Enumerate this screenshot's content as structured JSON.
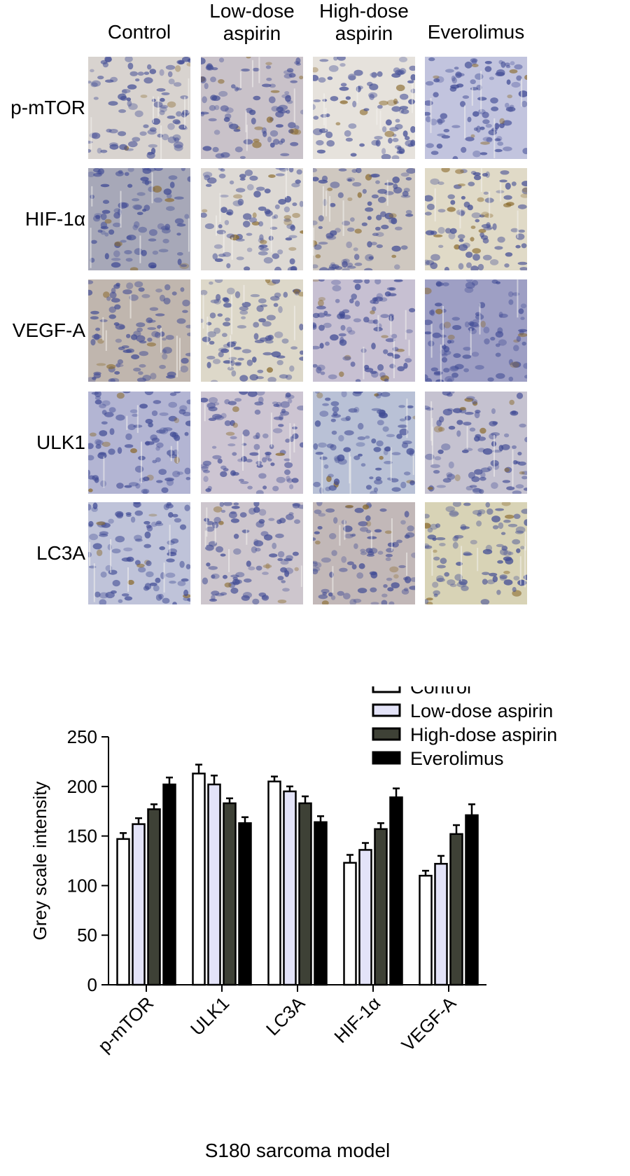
{
  "micrograph_panel": {
    "columns": [
      {
        "label": "Control"
      },
      {
        "label": "Low-dose\naspirin"
      },
      {
        "label": "High-dose\naspirin"
      },
      {
        "label": "Everolimus"
      }
    ],
    "rows": [
      {
        "label": "p-mTOR"
      },
      {
        "label": "HIF-1α"
      },
      {
        "label": "VEGF-A"
      },
      {
        "label": "ULK1"
      },
      {
        "label": "LC3A"
      }
    ],
    "background_colors": [
      [
        "#d8d3cf",
        "#c9c2c9",
        "#e6e2dc",
        "#c2c4de"
      ],
      [
        "#a7a8b8",
        "#ddd9d4",
        "#cfc8c0",
        "#e0dac7"
      ],
      [
        "#c0b6ae",
        "#ddd8c9",
        "#c7c0d2",
        "#9e9fc4"
      ],
      [
        "#b3b5d3",
        "#cdc5d2",
        "#b9c1d6",
        "#c5c2d0"
      ],
      [
        "#bfc3d9",
        "#cdc6cd",
        "#c2b8b8",
        "#d8d3b6"
      ]
    ],
    "nucleus_color": "#3f4a94",
    "stain_color": "#8a6a2c"
  },
  "chart_data": {
    "type": "bar",
    "xlabel": "S180 sarcoma model",
    "ylabel": "Grey scale intensity",
    "ylim": [
      0,
      250
    ],
    "yticks": [
      0,
      50,
      100,
      150,
      200,
      250
    ],
    "categories": [
      "p-mTOR",
      "ULK1",
      "LC3A",
      "HIF-1α",
      "VEGF-A"
    ],
    "series": [
      {
        "name": "Control",
        "color": "#ffffff",
        "values": [
          147,
          213,
          205,
          123,
          110
        ],
        "errors": [
          6,
          9,
          5,
          8,
          5
        ]
      },
      {
        "name": "Low-dose aspirin",
        "color": "#e3e3f8",
        "values": [
          162,
          202,
          195,
          136,
          122
        ],
        "errors": [
          6,
          9,
          5,
          7,
          8
        ]
      },
      {
        "name": "High-dose aspirin",
        "color": "#3e4136",
        "values": [
          177,
          183,
          183,
          157,
          152
        ],
        "errors": [
          5,
          5,
          7,
          6,
          9
        ]
      },
      {
        "name": "Everolimus",
        "color": "#000000",
        "values": [
          202,
          163,
          164,
          189,
          171
        ],
        "errors": [
          7,
          6,
          6,
          9,
          11
        ]
      }
    ],
    "legend_position": "top-right"
  }
}
